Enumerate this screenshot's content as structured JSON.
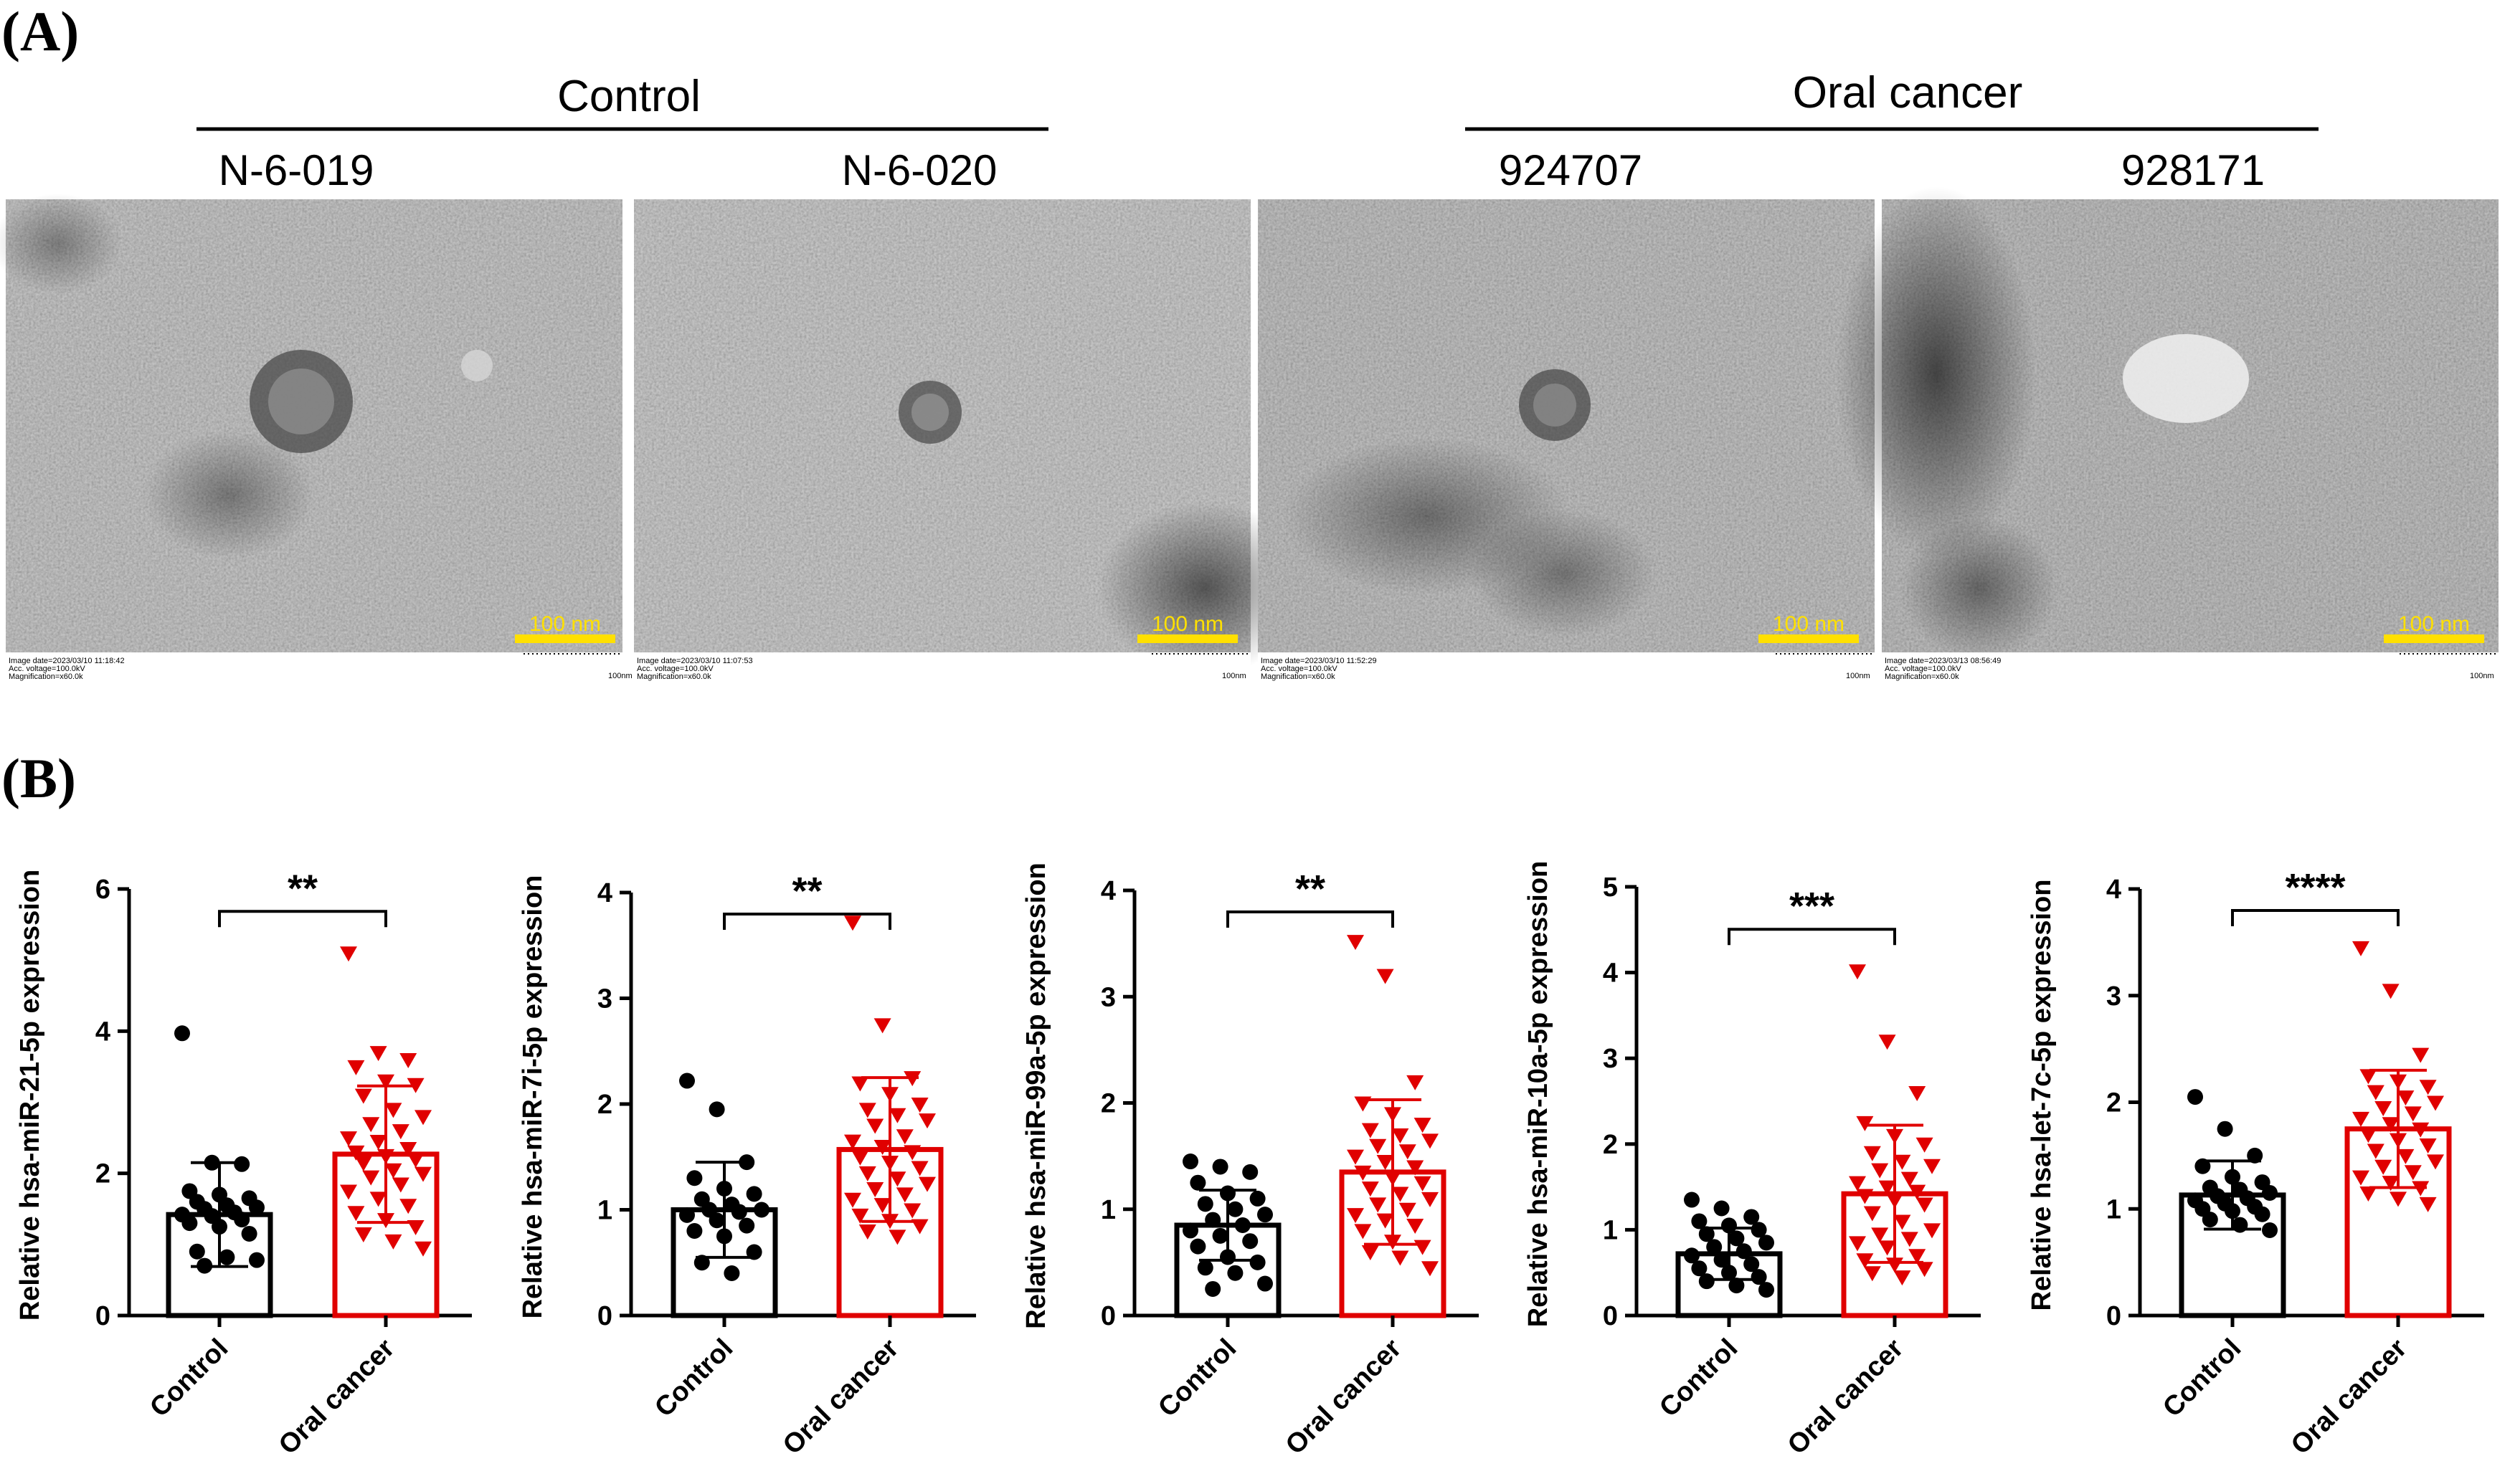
{
  "panel_a": {
    "letter": "(A)",
    "groups": [
      {
        "label": "Control",
        "samples": [
          "N-6-019",
          "N-6-020"
        ]
      },
      {
        "label": "Oral cancer",
        "samples": [
          "924707",
          "928171"
        ]
      }
    ],
    "images": [
      {
        "sample": "N-6-019",
        "scale_bar": "100 nm",
        "meta": [
          "Image date=2023/03/10 11:18:42",
          "Acc. voltage=100.0kV",
          "Magnification=x60.0k"
        ],
        "scale_note": "100nm"
      },
      {
        "sample": "N-6-020",
        "scale_bar": "100 nm",
        "meta": [
          "Image date=2023/03/10 11:07:53",
          "Acc. voltage=100.0kV",
          "Magnification=x60.0k"
        ],
        "scale_note": "100nm"
      },
      {
        "sample": "924707",
        "scale_bar": "100 nm",
        "meta": [
          "Image date=2023/03/10 11:52:29",
          "Acc. voltage=100.0kV",
          "Magnification=x60.0k"
        ],
        "scale_note": "100nm"
      },
      {
        "sample": "928171",
        "scale_bar": "100 nm",
        "meta": [
          "Image date=2023/03/13 08:56:49",
          "Acc. voltage=100.0kV",
          "Magnification=x60.0k"
        ],
        "scale_note": "100nm"
      }
    ]
  },
  "panel_b": {
    "letter": "(B)"
  },
  "colors": {
    "control": "#000000",
    "oral_cancer": "#e00000",
    "scale_bar": "#ffe000"
  },
  "chart_data": [
    {
      "type": "bar",
      "title": "",
      "ylabel": "Relative hsa-miR-21-5p expression",
      "categories": [
        "Control",
        "Oral cancer"
      ],
      "ylim": [
        0,
        6
      ],
      "yticks": [
        "0",
        "2",
        "4",
        "6"
      ],
      "significance": "**",
      "series": [
        {
          "name": "Control",
          "mean": 1.42,
          "sd": 0.73,
          "points": [
            3.97,
            2.15,
            2.13,
            1.75,
            1.7,
            1.65,
            1.6,
            1.55,
            1.52,
            1.5,
            1.45,
            1.42,
            1.4,
            1.35,
            1.3,
            1.25,
            1.15,
            0.9,
            0.82,
            0.78,
            0.7
          ]
        },
        {
          "name": "Oral cancer",
          "mean": 2.27,
          "sd": 0.96,
          "points": [
            5.1,
            3.7,
            3.6,
            3.5,
            3.3,
            3.25,
            3.1,
            2.9,
            2.8,
            2.7,
            2.6,
            2.5,
            2.45,
            2.35,
            2.3,
            2.25,
            2.2,
            2.15,
            2.05,
            2.0,
            1.95,
            1.85,
            1.75,
            1.65,
            1.55,
            1.45,
            1.35,
            1.25,
            1.15,
            1.05,
            0.95
          ]
        }
      ]
    },
    {
      "type": "bar",
      "title": "",
      "ylabel": "Relative hsa-miR-7i-5p expression",
      "categories": [
        "Control",
        "Oral cancer"
      ],
      "ylim": [
        0,
        4
      ],
      "yticks": [
        "0",
        "1",
        "2",
        "3",
        "4"
      ],
      "significance": "**",
      "series": [
        {
          "name": "Control",
          "mean": 1.0,
          "sd": 0.45,
          "points": [
            2.22,
            1.95,
            1.45,
            1.3,
            1.2,
            1.15,
            1.1,
            1.05,
            1.0,
            1.0,
            0.98,
            0.95,
            0.9,
            0.85,
            0.8,
            0.75,
            0.6,
            0.5,
            0.4
          ]
        },
        {
          "name": "Oral cancer",
          "mean": 1.57,
          "sd": 0.68,
          "points": [
            3.72,
            2.75,
            2.25,
            2.2,
            2.1,
            2.0,
            1.95,
            1.9,
            1.85,
            1.8,
            1.7,
            1.65,
            1.6,
            1.55,
            1.5,
            1.45,
            1.4,
            1.35,
            1.3,
            1.25,
            1.2,
            1.15,
            1.1,
            1.05,
            1.0,
            0.95,
            0.9,
            0.85,
            0.8,
            0.75
          ]
        }
      ]
    },
    {
      "type": "bar",
      "title": "",
      "ylabel": "Relative hsa-miR-99a-5p expression",
      "categories": [
        "Control",
        "Oral cancer"
      ],
      "ylim": [
        0,
        4
      ],
      "yticks": [
        "0",
        "1",
        "2",
        "3",
        "4"
      ],
      "significance": "**",
      "series": [
        {
          "name": "Control",
          "mean": 0.85,
          "sd": 0.33,
          "points": [
            1.45,
            1.4,
            1.35,
            1.25,
            1.15,
            1.1,
            1.05,
            1.0,
            0.95,
            0.9,
            0.85,
            0.8,
            0.75,
            0.7,
            0.65,
            0.55,
            0.5,
            0.45,
            0.4,
            0.3,
            0.25
          ]
        },
        {
          "name": "Oral cancer",
          "mean": 1.35,
          "sd": 0.68,
          "points": [
            3.52,
            3.2,
            2.2,
            2.0,
            1.9,
            1.8,
            1.75,
            1.7,
            1.65,
            1.6,
            1.55,
            1.5,
            1.45,
            1.4,
            1.35,
            1.3,
            1.25,
            1.2,
            1.15,
            1.1,
            1.05,
            1.0,
            0.95,
            0.9,
            0.85,
            0.8,
            0.7,
            0.65,
            0.6,
            0.55,
            0.45
          ]
        }
      ]
    },
    {
      "type": "bar",
      "title": "",
      "ylabel": "Relative hsa-miR-10a-5p expression",
      "categories": [
        "Control",
        "Oral cancer"
      ],
      "ylim": [
        0,
        5
      ],
      "yticks": [
        "0",
        "1",
        "2",
        "3",
        "4",
        "5"
      ],
      "significance": "***",
      "series": [
        {
          "name": "Control",
          "mean": 0.72,
          "sd": 0.3,
          "points": [
            1.35,
            1.25,
            1.15,
            1.1,
            1.05,
            1.0,
            0.95,
            0.9,
            0.85,
            0.8,
            0.75,
            0.7,
            0.65,
            0.6,
            0.55,
            0.5,
            0.45,
            0.4,
            0.35,
            0.3
          ]
        },
        {
          "name": "Oral cancer",
          "mean": 1.42,
          "sd": 0.8,
          "points": [
            4.02,
            3.2,
            2.6,
            2.25,
            2.1,
            2.0,
            1.9,
            1.8,
            1.75,
            1.7,
            1.6,
            1.55,
            1.5,
            1.45,
            1.4,
            1.35,
            1.3,
            1.2,
            1.1,
            1.0,
            0.95,
            0.9,
            0.85,
            0.8,
            0.7,
            0.65,
            0.6,
            0.55,
            0.5,
            0.45
          ]
        }
      ]
    },
    {
      "type": "bar",
      "title": "",
      "ylabel": "Relative hsa-let-7c-5p expression",
      "categories": [
        "Control",
        "Oral cancer"
      ],
      "ylim": [
        0,
        4
      ],
      "yticks": [
        "0",
        "1",
        "2",
        "3",
        "4"
      ],
      "significance": "****",
      "series": [
        {
          "name": "Control",
          "mean": 1.13,
          "sd": 0.32,
          "points": [
            2.05,
            1.75,
            1.5,
            1.4,
            1.3,
            1.25,
            1.2,
            1.18,
            1.15,
            1.12,
            1.1,
            1.08,
            1.05,
            1.02,
            1.0,
            0.98,
            0.95,
            0.9,
            0.85,
            0.8
          ]
        },
        {
          "name": "Oral cancer",
          "mean": 1.75,
          "sd": 0.55,
          "points": [
            3.45,
            3.05,
            2.45,
            2.25,
            2.2,
            2.15,
            2.1,
            2.05,
            2.0,
            1.95,
            1.9,
            1.85,
            1.8,
            1.75,
            1.7,
            1.65,
            1.6,
            1.55,
            1.5,
            1.45,
            1.4,
            1.35,
            1.3,
            1.25,
            1.2,
            1.15,
            1.1,
            1.05
          ]
        }
      ]
    }
  ]
}
